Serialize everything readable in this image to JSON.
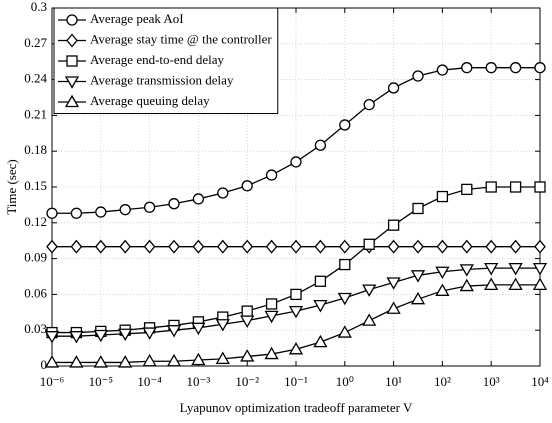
{
  "chart_data": {
    "type": "line",
    "x_label": "Lyapunov optimization tradeoff parameter V",
    "y_label": "Time (sec)",
    "log_x": true,
    "grid": true,
    "legend": "upper left",
    "x": [
      1e-06,
      3.162e-06,
      1e-05,
      3.162e-05,
      0.0001,
      0.0003162,
      0.001,
      0.003162,
      0.01,
      0.03162,
      0.1,
      0.3162,
      1,
      3.162,
      10,
      31.62,
      100,
      316.2,
      1000,
      3162,
      10000
    ],
    "xlim": [
      1e-06,
      10000
    ],
    "xticks": [
      {
        "value": 1e-06,
        "label": "10⁻⁶"
      },
      {
        "value": 1e-05,
        "label": "10⁻⁵"
      },
      {
        "value": 0.0001,
        "label": "10⁻⁴"
      },
      {
        "value": 0.001,
        "label": "10⁻³"
      },
      {
        "value": 0.01,
        "label": "10⁻²"
      },
      {
        "value": 0.1,
        "label": "10⁻¹"
      },
      {
        "value": 1,
        "label": "10⁰"
      },
      {
        "value": 10,
        "label": "10¹"
      },
      {
        "value": 100,
        "label": "10²"
      },
      {
        "value": 1000,
        "label": "10³"
      },
      {
        "value": 10000,
        "label": "10⁴"
      }
    ],
    "ylim": [
      0,
      0.3
    ],
    "yticks": [
      0,
      0.03,
      0.06,
      0.09,
      0.12,
      0.15,
      0.18,
      0.21,
      0.24,
      0.27,
      0.3
    ],
    "series": [
      {
        "name": "Average peak AoI",
        "color": "#000000",
        "marker": "circle",
        "values": [
          0.128,
          0.128,
          0.129,
          0.131,
          0.133,
          0.136,
          0.14,
          0.145,
          0.151,
          0.16,
          0.171,
          0.185,
          0.202,
          0.219,
          0.233,
          0.243,
          0.248,
          0.25,
          0.25,
          0.25,
          0.25
        ]
      },
      {
        "name": "Average stay time @ the controller",
        "color": "#000000",
        "marker": "diamond",
        "values": [
          0.1,
          0.1,
          0.1,
          0.1,
          0.1,
          0.1,
          0.1,
          0.1,
          0.1,
          0.1,
          0.1,
          0.1,
          0.1,
          0.1,
          0.1,
          0.1,
          0.1,
          0.1,
          0.1,
          0.1,
          0.1
        ]
      },
      {
        "name": "Average end-to-end delay",
        "color": "#000000",
        "marker": "square",
        "values": [
          0.028,
          0.028,
          0.029,
          0.03,
          0.032,
          0.034,
          0.037,
          0.041,
          0.046,
          0.052,
          0.06,
          0.071,
          0.085,
          0.102,
          0.118,
          0.132,
          0.142,
          0.148,
          0.15,
          0.15,
          0.15
        ]
      },
      {
        "name": "Average transmission delay",
        "color": "#000000",
        "marker": "triangle-down",
        "values": [
          0.025,
          0.025,
          0.026,
          0.027,
          0.028,
          0.03,
          0.032,
          0.035,
          0.038,
          0.042,
          0.046,
          0.051,
          0.057,
          0.064,
          0.07,
          0.076,
          0.079,
          0.081,
          0.082,
          0.082,
          0.082
        ]
      },
      {
        "name": "Average queuing delay",
        "color": "#000000",
        "marker": "triangle-up",
        "values": [
          0.003,
          0.003,
          0.003,
          0.003,
          0.004,
          0.004,
          0.005,
          0.006,
          0.008,
          0.01,
          0.014,
          0.02,
          0.028,
          0.038,
          0.048,
          0.056,
          0.063,
          0.067,
          0.068,
          0.068,
          0.068
        ]
      }
    ]
  }
}
